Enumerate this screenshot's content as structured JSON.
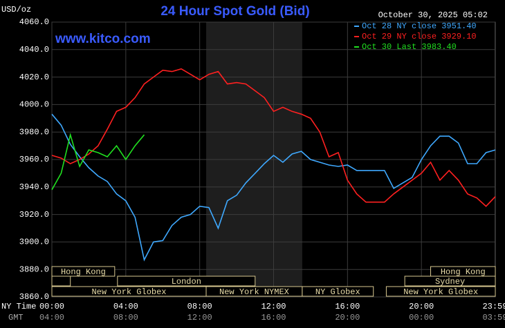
{
  "chart_data": {
    "type": "line",
    "title": "24 Hour Spot Gold (Bid)",
    "y_unit_label": "USD/oz",
    "timestamp": "October 30, 2025 05:02",
    "watermark": "www.kitco.com",
    "x_axis_labels": [
      "NY Time",
      "GMT"
    ],
    "xlim": [
      0,
      24
    ],
    "ylim": [
      3860,
      4060
    ],
    "yticks": [
      {
        "value": 3860,
        "label": "3860.0"
      },
      {
        "value": 3880,
        "label": "3880.0"
      },
      {
        "value": 3900,
        "label": "3900.0"
      },
      {
        "value": 3920,
        "label": "3920.0"
      },
      {
        "value": 3940,
        "label": "3940.0"
      },
      {
        "value": 3960,
        "label": "3960.0"
      },
      {
        "value": 3980,
        "label": "3980.0"
      },
      {
        "value": 4000,
        "label": "4000.0"
      },
      {
        "value": 4020,
        "label": "4020.0"
      },
      {
        "value": 4040,
        "label": "4040.0"
      },
      {
        "value": 4060,
        "label": "4060.0"
      }
    ],
    "xticks": [
      {
        "value": 0,
        "label": "00:00"
      },
      {
        "value": 4,
        "label": "04:00"
      },
      {
        "value": 8,
        "label": "08:00"
      },
      {
        "value": 12,
        "label": "12:00"
      },
      {
        "value": 16,
        "label": "16:00"
      },
      {
        "value": 20,
        "label": "20:00"
      },
      {
        "value": 23.98,
        "label": "23:59"
      }
    ],
    "gmt_ticks": [
      {
        "value": 0,
        "label": "04:00"
      },
      {
        "value": 4,
        "label": "08:00"
      },
      {
        "value": 8,
        "label": "12:00"
      },
      {
        "value": 12,
        "label": "16:00"
      },
      {
        "value": 16,
        "label": "20:00"
      },
      {
        "value": 20,
        "label": "00:00"
      },
      {
        "value": 23.98,
        "label": "03:59"
      }
    ],
    "grid": true,
    "shaded_band": [
      8.35,
      13.55
    ],
    "x": [
      0,
      0.5,
      1,
      1.5,
      2,
      2.5,
      3,
      3.5,
      4,
      4.5,
      5,
      5.5,
      6,
      6.5,
      7,
      7.5,
      8,
      8.5,
      9,
      9.5,
      10,
      10.5,
      11,
      11.5,
      12,
      12.5,
      13,
      13.5,
      14,
      14.5,
      15,
      15.5,
      16,
      16.5,
      17,
      17.5,
      18,
      18.5,
      19,
      19.5,
      20,
      20.5,
      21,
      21.5,
      22,
      22.5,
      23,
      23.5,
      24
    ],
    "series": [
      {
        "name": "Oct 28 NY close 3951.40",
        "color": "#3fa9ff",
        "values": [
          3993,
          3985,
          3971,
          3962,
          3954,
          3948,
          3944,
          3935,
          3930,
          3918,
          3887,
          3900,
          3901,
          3912,
          3918,
          3920,
          3926,
          3925,
          3910,
          3930,
          3934,
          3943,
          3950,
          3957,
          3963,
          3958,
          3964,
          3966,
          3960,
          3958,
          3956,
          3955,
          3956,
          3952,
          3952,
          3952,
          3952,
          3939,
          3943,
          3947,
          3960,
          3970,
          3977,
          3977,
          3972,
          3957,
          3957,
          3965,
          3967
        ]
      },
      {
        "name": "Oct 29 NY close 3929.10",
        "color": "#ff2020",
        "values": [
          3963,
          3961,
          3957,
          3960,
          3964,
          3970,
          3982,
          3995,
          3998,
          4005,
          4015,
          4020,
          4025,
          4024,
          4026,
          4022,
          4018,
          4022,
          4024,
          4015,
          4016,
          4015,
          4010,
          4005,
          3995,
          3998,
          3995,
          3993,
          3990,
          3980,
          3962,
          3965,
          3945,
          3935,
          3929,
          3929,
          3929,
          3935,
          3940,
          3945,
          3950,
          3958,
          3945,
          3952,
          3945,
          3935,
          3932,
          3926,
          3933
        ]
      },
      {
        "name": "Oct 30 Last 3983.40",
        "color": "#20e020",
        "values": [
          3938,
          3950,
          3978,
          3955,
          3967,
          3965,
          3962,
          3970,
          3960,
          3970,
          3978,
          null,
          null,
          null,
          null,
          null,
          null,
          null,
          null,
          null,
          null,
          null,
          null,
          null,
          null,
          null,
          null,
          null,
          null,
          null,
          null,
          null,
          null,
          null,
          null,
          null,
          null,
          null,
          null,
          null,
          null,
          null,
          null,
          null,
          null,
          null,
          null,
          null,
          null
        ]
      }
    ],
    "sessions": [
      {
        "label": "Hong Kong",
        "start": 0,
        "end": 3.4,
        "row": 0
      },
      {
        "label": "Hong Kong",
        "start": 20.5,
        "end": 24,
        "row": 0
      },
      {
        "label": null,
        "start": 0,
        "end": 1,
        "row": 1
      },
      {
        "label": "London",
        "start": 3.55,
        "end": 11,
        "row": 1
      },
      {
        "label": "Sydney",
        "start": 19.1,
        "end": 24,
        "row": 1
      },
      {
        "label": "New York Globex",
        "start": 0,
        "end": 8.35,
        "row": 2
      },
      {
        "label": "New York NYMEX",
        "start": 8.35,
        "end": 13.55,
        "row": 2
      },
      {
        "label": "NY Globex",
        "start": 13.55,
        "end": 17.4,
        "row": 2
      },
      {
        "label": "New York Globex",
        "start": 18.1,
        "end": 24,
        "row": 2
      }
    ]
  }
}
